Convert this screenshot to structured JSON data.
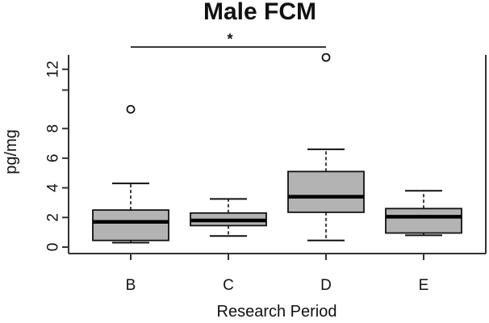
{
  "chart_data": {
    "type": "boxplot",
    "title": "Male FCM",
    "xlabel": "Research Period",
    "ylabel": "pg/mg",
    "ylim": [
      0,
      12.6
    ],
    "yticks": [
      0,
      2,
      4,
      6,
      8,
      12
    ],
    "box_fill": "#b3b3b3",
    "categories": [
      "B",
      "C",
      "D",
      "E"
    ],
    "boxes": [
      {
        "name": "B",
        "whisker_low": 0.3,
        "q1": 0.45,
        "median": 1.7,
        "q3": 2.5,
        "whisker_high": 4.3,
        "outliers": [
          9.3
        ]
      },
      {
        "name": "C",
        "whisker_low": 0.75,
        "q1": 1.45,
        "median": 1.8,
        "q3": 2.3,
        "whisker_high": 3.25,
        "outliers": []
      },
      {
        "name": "D",
        "whisker_low": 0.45,
        "q1": 2.35,
        "median": 3.4,
        "q3": 5.1,
        "whisker_high": 6.6,
        "outliers": [
          12.8
        ]
      },
      {
        "name": "E",
        "whisker_low": 0.8,
        "q1": 0.95,
        "median": 2.05,
        "q3": 2.6,
        "whisker_high": 3.8,
        "outliers": []
      }
    ],
    "significance": {
      "from": "B",
      "to": "D",
      "y": 13.5,
      "label": "*"
    }
  }
}
